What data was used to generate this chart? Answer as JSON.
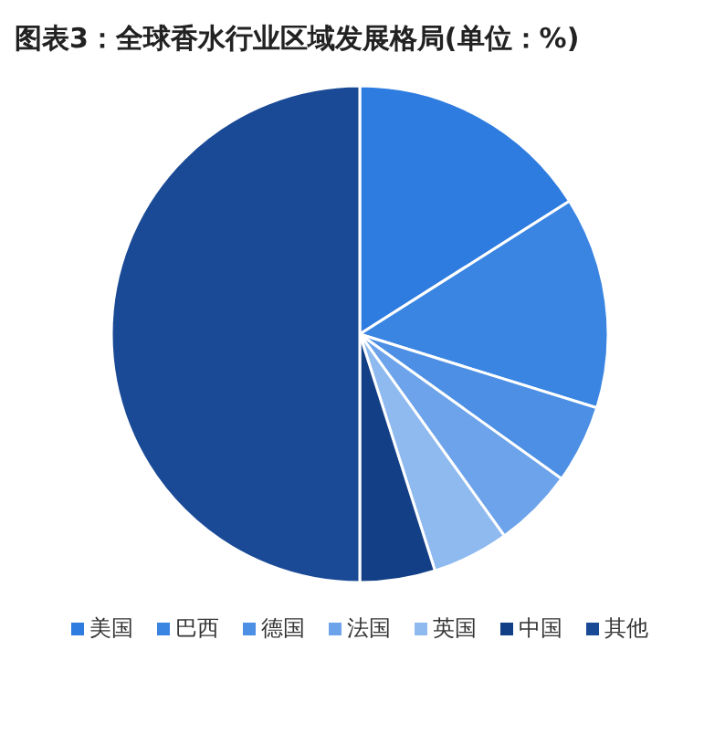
{
  "chart_data": {
    "type": "pie",
    "title": "图表3：全球香水行业区域发展格局(单位：%)",
    "categories": [
      "美国",
      "巴西",
      "德国",
      "法国",
      "英国",
      "中国",
      "其他"
    ],
    "values": [
      16,
      13.8,
      5.1,
      5.2,
      5,
      4.9,
      50
    ],
    "colors": [
      "#2e7ce0",
      "#3a85e2",
      "#4c8fe4",
      "#6ca3ea",
      "#8fbaf0",
      "#123f86",
      "#1a4a96"
    ],
    "legend": "bottom"
  }
}
